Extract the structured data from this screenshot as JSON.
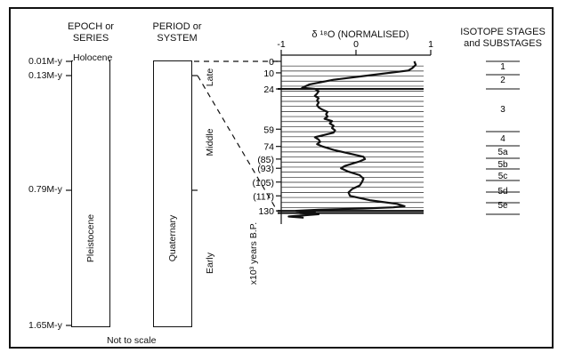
{
  "headers": {
    "epoch": "EPOCH or\nSERIES",
    "period": "PERIOD or\nSYSTEM",
    "isotope_title": "δ ¹⁸O (NORMALISED)",
    "stages": "ISOTOPE STAGES\nand SUBSTAGES"
  },
  "epoch_column": {
    "holocene": "Holocene",
    "pleistocene": "Pleistocene"
  },
  "period_column": {
    "quaternary": "Quaternary"
  },
  "subdivisions": [
    "Late",
    "Middle",
    "Early"
  ],
  "age_labels": [
    "0.01M-y",
    "0.13M-y",
    "0.79M-y",
    "1.65M-y"
  ],
  "footer_note": "Not to scale",
  "y_axis_label": "x10³ years B.P.",
  "chart_data": {
    "type": "line",
    "title": "δ ¹⁸O (NORMALISED)",
    "x_ticks": [
      "-1",
      "0",
      "1"
    ],
    "xlim": [
      -1,
      1
    ],
    "y_tick_labels": [
      "0",
      "10",
      "24",
      "59",
      "74",
      "(85)",
      "(93)",
      "(105)",
      "(117)",
      "130"
    ],
    "y_tick_values": [
      0,
      10,
      24,
      59,
      74,
      85,
      93,
      105,
      117,
      130
    ],
    "ylim": [
      0,
      140
    ],
    "series": [
      {
        "name": "δ18O",
        "points": [
          [
            0.78,
            0
          ],
          [
            0.8,
            3
          ],
          [
            0.75,
            6
          ],
          [
            0.7,
            8
          ],
          [
            0.2,
            12
          ],
          [
            -0.3,
            16
          ],
          [
            -0.62,
            20
          ],
          [
            -0.72,
            23
          ],
          [
            -0.55,
            24
          ],
          [
            -0.5,
            26
          ],
          [
            -0.52,
            28
          ],
          [
            -0.55,
            30
          ],
          [
            -0.5,
            32
          ],
          [
            -0.52,
            34
          ],
          [
            -0.5,
            36
          ],
          [
            -0.52,
            38
          ],
          [
            -0.5,
            40
          ],
          [
            -0.45,
            42
          ],
          [
            -0.38,
            44
          ],
          [
            -0.4,
            46
          ],
          [
            -0.38,
            48
          ],
          [
            -0.42,
            50
          ],
          [
            -0.32,
            52
          ],
          [
            -0.35,
            54
          ],
          [
            -0.3,
            56
          ],
          [
            -0.32,
            58
          ],
          [
            -0.28,
            60
          ],
          [
            -0.3,
            62
          ],
          [
            -0.42,
            64
          ],
          [
            -0.55,
            66
          ],
          [
            -0.5,
            68
          ],
          [
            -0.48,
            70
          ],
          [
            -0.52,
            72
          ],
          [
            -0.45,
            74
          ],
          [
            -0.3,
            77
          ],
          [
            -0.1,
            80
          ],
          [
            0.1,
            83
          ],
          [
            0.12,
            85
          ],
          [
            0.05,
            87
          ],
          [
            -0.05,
            89
          ],
          [
            -0.15,
            91
          ],
          [
            -0.2,
            93
          ],
          [
            -0.1,
            96
          ],
          [
            0.05,
            99
          ],
          [
            0.1,
            102
          ],
          [
            0.08,
            105
          ],
          [
            0.05,
            108
          ],
          [
            -0.05,
            111
          ],
          [
            -0.1,
            114
          ],
          [
            -0.08,
            117
          ],
          [
            0.2,
            121
          ],
          [
            0.55,
            124
          ],
          [
            0.65,
            126
          ],
          [
            0.5,
            127
          ],
          [
            0.1,
            128
          ],
          [
            -0.5,
            129
          ],
          [
            -0.8,
            130
          ],
          [
            -0.55,
            131
          ],
          [
            -0.75,
            132
          ],
          [
            -0.5,
            133
          ],
          [
            -0.9,
            135
          ],
          [
            -0.7,
            136
          ]
        ]
      }
    ]
  },
  "stages": [
    "1",
    "2",
    "3",
    "4",
    "5a",
    "5b",
    "5c",
    "5d",
    "5e"
  ],
  "stage_boundaries_years": [
    0,
    12,
    24,
    59,
    74,
    85,
    93,
    105,
    117,
    130
  ]
}
